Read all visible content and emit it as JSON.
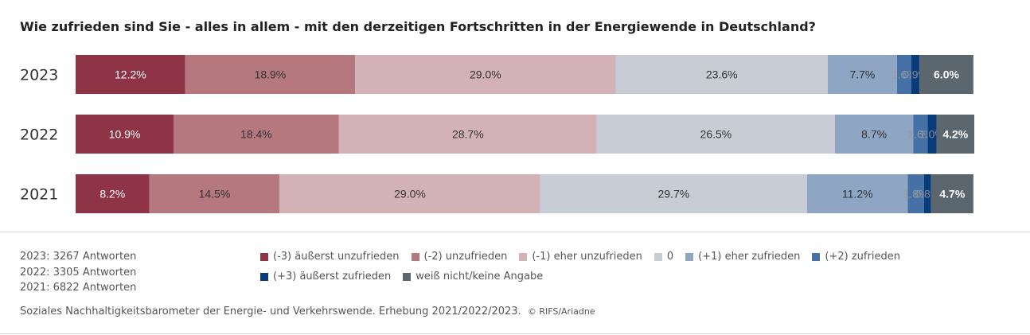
{
  "title": "Wie zufrieden sind Sie - alles in allem - mit den derzeitigen Fortschritten in der Energiewende in Deutschland?",
  "responses": [
    "2023: 3267 Antworten",
    "2022: 3305 Antworten",
    "2021: 6822 Antworten"
  ],
  "source": "Soziales Nachhaltigkeitsbarometer der Energie- und Verkehrswende. Erhebung 2021/2022/2023.",
  "copyright": "© RIFS/Ariadne",
  "chart_data": {
    "type": "bar",
    "orientation": "horizontal",
    "stacked": true,
    "normalized": true,
    "categories": [
      "2023",
      "2022",
      "2021"
    ],
    "xlim": [
      0,
      100
    ],
    "series": [
      {
        "name": "(-3) äußerst unzufrieden",
        "color": "#8e3446",
        "label_color": "#ffffff",
        "values": [
          12.2,
          10.9,
          8.2
        ],
        "labels": [
          "12.2%",
          "10.9%",
          "8.2%"
        ]
      },
      {
        "name": "(-2) unzufrieden",
        "color": "#b5787f",
        "label_color": "#333333",
        "values": [
          18.9,
          18.4,
          14.5
        ],
        "labels": [
          "18.9%",
          "18.4%",
          "14.5%"
        ]
      },
      {
        "name": "(-1) eher unzufrieden",
        "color": "#d2b2b6",
        "label_color": "#333333",
        "values": [
          29.0,
          28.7,
          29.0
        ],
        "labels": [
          "29.0%",
          "28.7%",
          "29.0%"
        ]
      },
      {
        "name": "0",
        "color": "#c8ccd4",
        "label_color": "#333333",
        "values": [
          23.6,
          26.5,
          29.7
        ],
        "labels": [
          "23.6%",
          "26.5%",
          "29.7%"
        ]
      },
      {
        "name": "(+1) eher zufrieden",
        "color": "#8ea5c3",
        "label_color": "#333333",
        "values": [
          7.7,
          8.7,
          11.2
        ],
        "labels": [
          "7.7%",
          "8.7%",
          "11.2%"
        ]
      },
      {
        "name": "(+2) zufrieden",
        "color": "#4671a6",
        "label_color": "#9a9a9a",
        "values": [
          1.6,
          1.6,
          1.8
        ],
        "labels": [
          "1.6%",
          "1.6%",
          "1.8%"
        ]
      },
      {
        "name": "(+3) äußerst zufrieden",
        "color": "#073c78",
        "label_color": "#9a9a9a",
        "values": [
          0.9,
          1.0,
          0.8
        ],
        "labels": [
          "0.9%",
          "1.0%",
          "0.8%"
        ]
      },
      {
        "name": "weiß nicht/keine Angabe",
        "color": "#5b666e",
        "label_color": "#ffffff",
        "label_bold": true,
        "values": [
          6.0,
          4.2,
          4.7
        ],
        "labels": [
          "6.0%",
          "4.2%",
          "4.7%"
        ]
      }
    ],
    "grid": false,
    "legend": "bottom"
  }
}
